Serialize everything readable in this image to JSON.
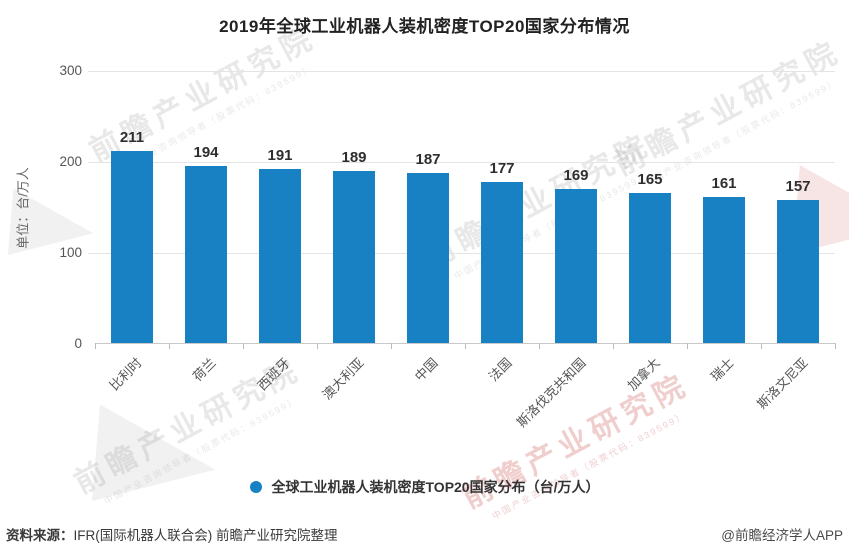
{
  "chart": {
    "title": "2019年全球工业机器人装机密度TOP20国家分布情况",
    "unit_label": "单位：台/万人",
    "legend_label": "全球工业机器人装机密度TOP20国家分布（台/万人）"
  },
  "chart_data": {
    "type": "bar",
    "title": "2019年全球工业机器人装机密度TOP20国家分布情况",
    "categories": [
      "比利时",
      "荷兰",
      "西班牙",
      "澳大利亚",
      "中国",
      "法国",
      "斯洛伐克共和国",
      "加拿大",
      "瑞士",
      "斯洛文尼亚"
    ],
    "values": [
      211,
      194,
      191,
      189,
      187,
      177,
      169,
      165,
      161,
      157
    ],
    "xlabel": "",
    "ylabel": "单位：台/万人",
    "ylim": [
      0,
      300
    ],
    "yticks": [
      0,
      100,
      200,
      300
    ],
    "grid": true,
    "value_labels": true,
    "legend": [
      "全球工业机器人装机密度TOP20国家分布（台/万人）"
    ],
    "legend_position": "bottom",
    "bar_color": "#1781c4"
  },
  "footer": {
    "source_label": "资料来源：",
    "source_text": "IFR(国际机器人联合会) 前瞻产业研究院整理",
    "credit": "@前瞻经济学人APP"
  },
  "watermark": {
    "brand_text": "前瞻产业研究院",
    "sub_text": "中国产业咨询领导者（股票代码：839599）",
    "gray_color": "#6e6e6e",
    "pink_color": "#cd5c5c"
  }
}
